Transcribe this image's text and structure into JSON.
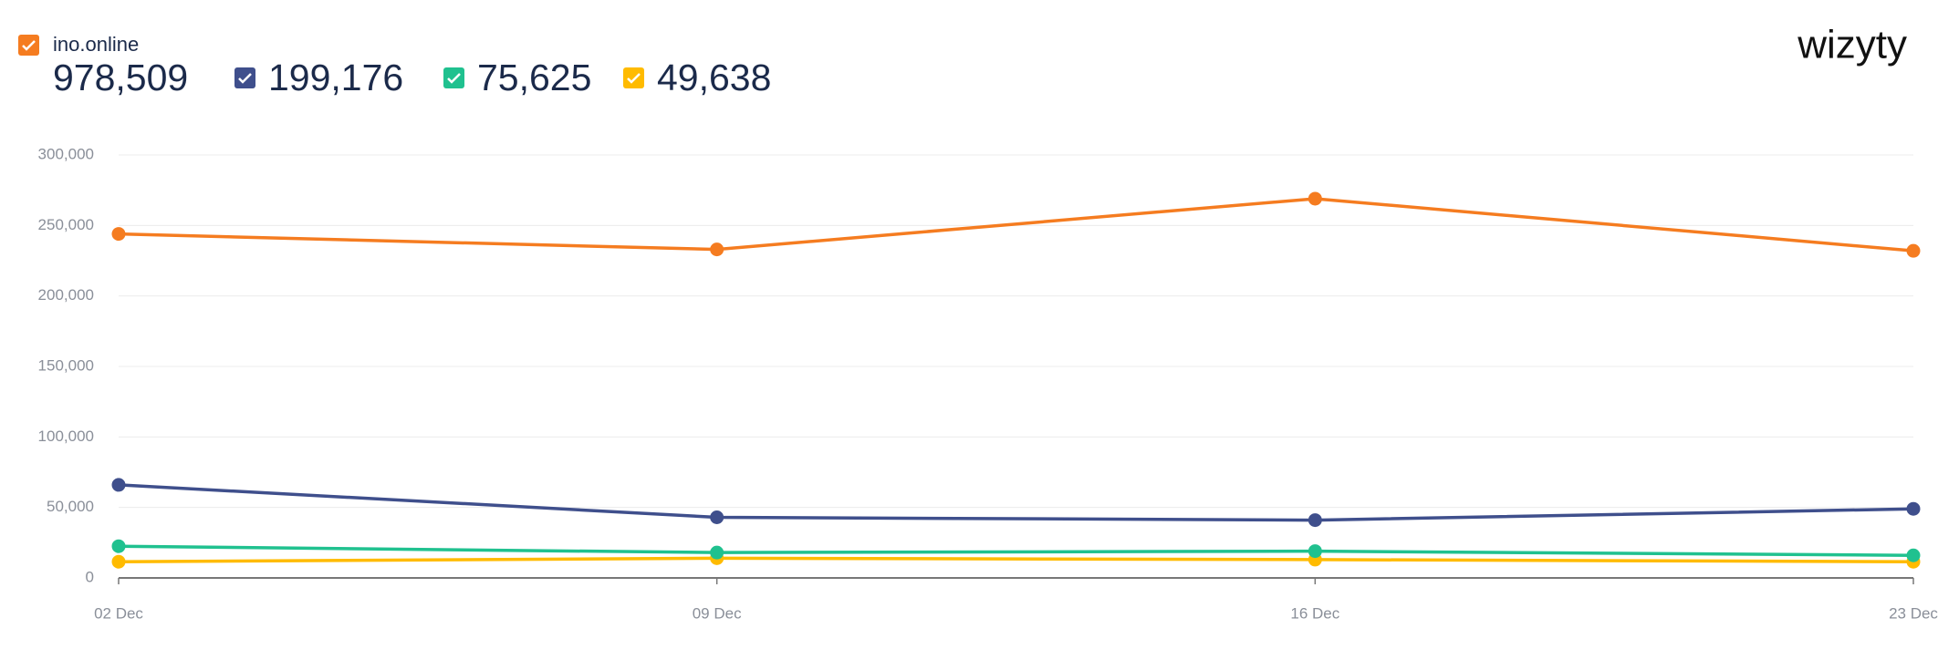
{
  "chart_data": {
    "type": "line",
    "title": "wizyty",
    "categories": [
      "02 Dec",
      "09 Dec",
      "16 Dec",
      "23 Dec"
    ],
    "series": [
      {
        "name": "ino.online",
        "color": "#f57c20",
        "total": {
          "value": 978509,
          "label": "978,509"
        },
        "values": [
          244000,
          233000,
          269000,
          232000
        ]
      },
      {
        "color": "#3f4f8c",
        "total": {
          "value": 199176,
          "label": "199,176"
        },
        "values": [
          66000,
          43000,
          41000,
          49000
        ]
      },
      {
        "color": "#20c18f",
        "total": {
          "value": 75625,
          "label": "75,625"
        },
        "values": [
          22500,
          18000,
          19000,
          16000
        ]
      },
      {
        "color": "#ffbb00",
        "total": {
          "value": 49638,
          "label": "49,638"
        },
        "values": [
          11500,
          14000,
          13000,
          11500
        ]
      }
    ],
    "ylim": [
      0,
      300000
    ],
    "yticks": [
      0,
      {
        "value": 50000,
        "label": "50,000"
      },
      {
        "value": 100000,
        "label": "100,000"
      },
      {
        "value": 150000,
        "label": "150,000"
      },
      {
        "value": 200000,
        "label": "200,000"
      },
      {
        "value": 250000,
        "label": "250,000"
      },
      {
        "value": 300000,
        "label": "300,000"
      }
    ],
    "grid": true
  }
}
